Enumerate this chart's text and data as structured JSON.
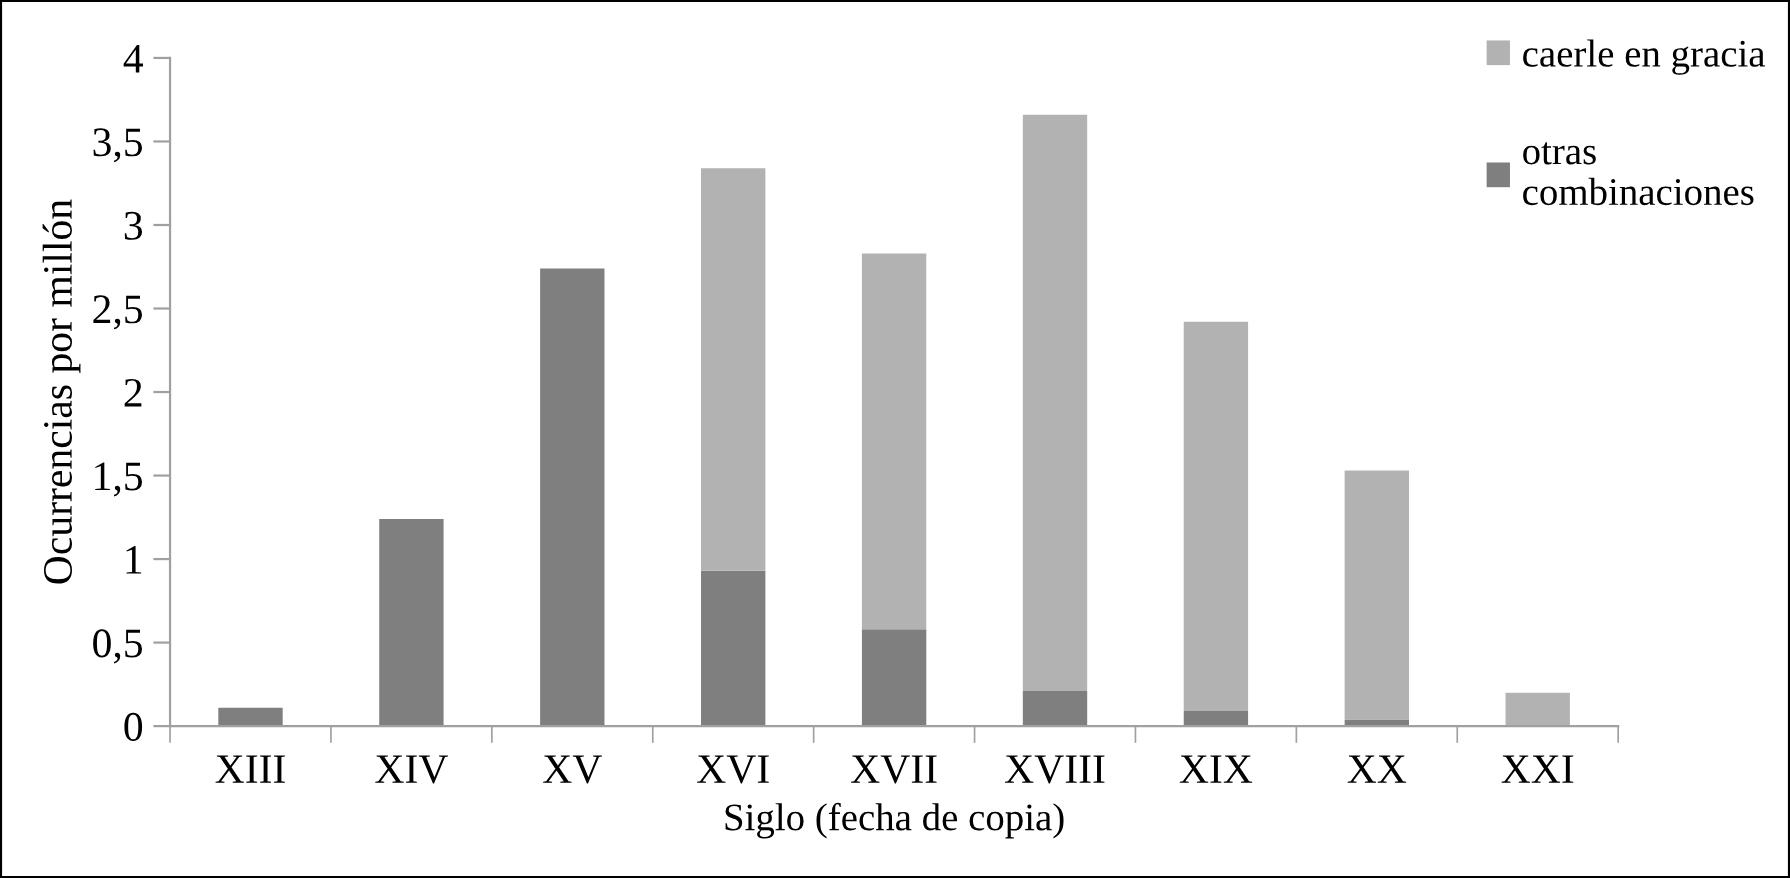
{
  "chart_data": {
    "type": "bar",
    "stacked": true,
    "categories": [
      "XIII",
      "XIV",
      "XV",
      "XVI",
      "XVII",
      "XVIII",
      "XIX",
      "XX",
      "XXI"
    ],
    "series": [
      {
        "name": "otras\ncombinaciones",
        "color": "#7f7f7f",
        "values": [
          0.11,
          1.24,
          2.74,
          0.93,
          0.58,
          0.21,
          0.09,
          0.04,
          null
        ]
      },
      {
        "name": "caerle en gracia",
        "color": "#b2b2b2",
        "values": [
          0,
          0,
          0,
          2.41,
          2.25,
          3.45,
          2.33,
          1.49,
          0.2
        ]
      }
    ],
    "xlabel": "Siglo (fecha de copia)",
    "ylabel": "Ocurrencias por millón",
    "ylim": [
      0,
      4
    ],
    "yticks": [
      0,
      {
        "value": 0.5,
        "label": "0,5"
      },
      1,
      {
        "value": 1.5,
        "label": "1,5"
      },
      2,
      {
        "value": 2.5,
        "label": "2,5"
      },
      3,
      {
        "value": 3.5,
        "label": "3,5"
      },
      4
    ],
    "grid": false,
    "legend": "top right"
  }
}
